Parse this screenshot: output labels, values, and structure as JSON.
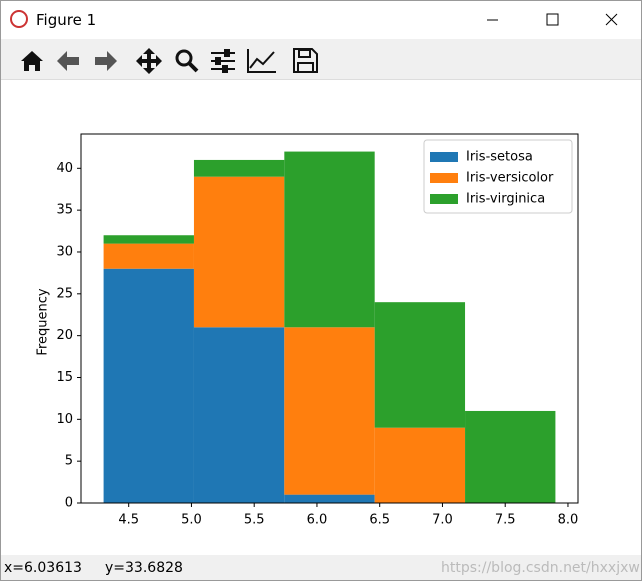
{
  "window": {
    "title": "Figure 1"
  },
  "status": {
    "x": "x=6.03613",
    "y": "y=33.6828",
    "watermark": "https://blog.csdn.net/hxxjxw"
  },
  "chart_data": {
    "type": "histogram",
    "stacked": true,
    "ylabel": "Frequency",
    "bins": [
      4.3,
      5.02,
      5.74,
      6.46,
      7.18,
      7.9
    ],
    "series": [
      {
        "name": "Iris-setosa",
        "color": "#1f77b4",
        "values": [
          28,
          21,
          1,
          0,
          0
        ]
      },
      {
        "name": "Iris-versicolor",
        "color": "#ff7f0e",
        "values": [
          3,
          18,
          20,
          9,
          0
        ]
      },
      {
        "name": "Iris-virginica",
        "color": "#2ca02c",
        "values": [
          1,
          2,
          21,
          15,
          11
        ]
      }
    ],
    "xlim": [
      4.12,
      8.08
    ],
    "xticks": [
      4.5,
      {
        "value": 5.0,
        "label": "5.0"
      },
      5.5,
      {
        "value": 6.0,
        "label": "6.0"
      },
      6.5,
      {
        "value": 7.0,
        "label": "7.0"
      },
      7.5,
      {
        "value": 8.0,
        "label": "8.0"
      }
    ],
    "ylim": [
      0,
      44.1
    ],
    "yticks": [
      0,
      5,
      10,
      15,
      20,
      25,
      30,
      35,
      40
    ],
    "legend": "upper right"
  }
}
